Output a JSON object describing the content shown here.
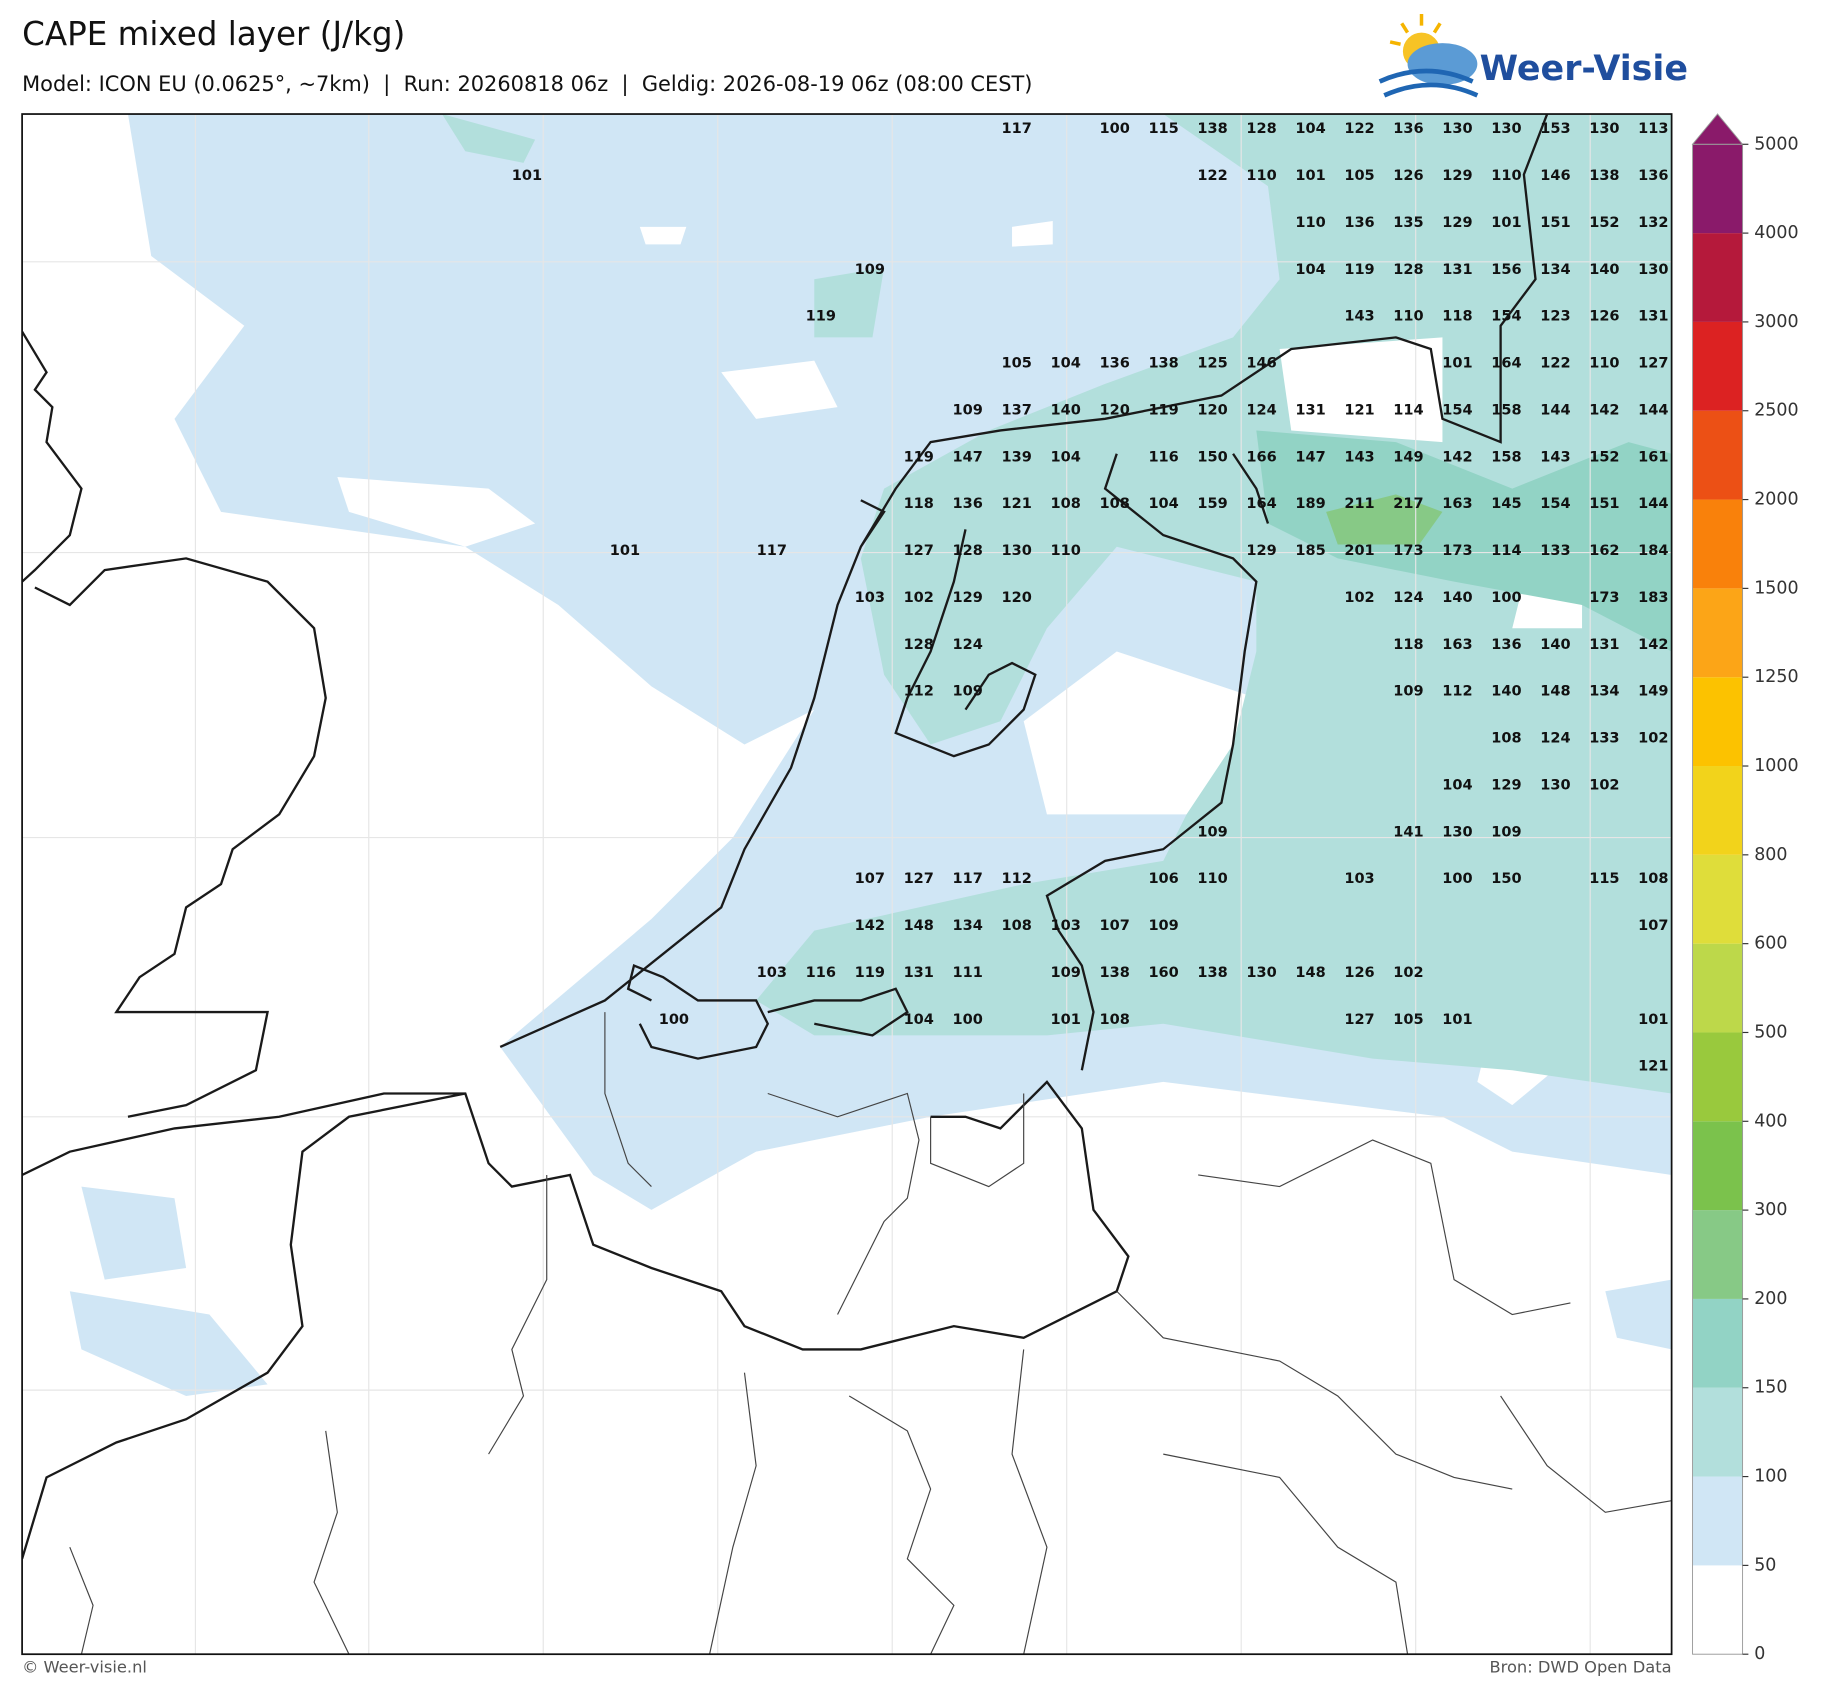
{
  "header": {
    "title": "CAPE mixed layer (J/kg)",
    "subtitle": "Model: ICON EU (0.0625°, ~7km)  |  Run: 20260818 06z  |  Geldig: 2026-08-19 06z (08:00 CEST)"
  },
  "logo": {
    "text": "Weer-Visie"
  },
  "map": {
    "values": [
      [
        null,
        null,
        null,
        null,
        null,
        null,
        null,
        null,
        null,
        null,
        117,
        null,
        100,
        115,
        138,
        128,
        104,
        122,
        136,
        130,
        130,
        153,
        130,
        113
      ],
      [
        101,
        null,
        null,
        null,
        null,
        null,
        null,
        null,
        null,
        null,
        null,
        null,
        null,
        null,
        122,
        110,
        101,
        105,
        126,
        129,
        110,
        146,
        138,
        136
      ],
      [
        null,
        null,
        null,
        null,
        null,
        null,
        null,
        null,
        null,
        null,
        null,
        null,
        null,
        null,
        null,
        null,
        110,
        136,
        135,
        129,
        101,
        151,
        152,
        132
      ],
      [
        null,
        null,
        null,
        null,
        null,
        null,
        null,
        109,
        null,
        null,
        null,
        null,
        null,
        null,
        null,
        null,
        104,
        119,
        128,
        131,
        156,
        134,
        140,
        130
      ],
      [
        null,
        null,
        null,
        null,
        null,
        null,
        119,
        null,
        null,
        null,
        null,
        null,
        null,
        null,
        null,
        null,
        null,
        143,
        110,
        118,
        154,
        123,
        126,
        131
      ],
      [
        null,
        null,
        null,
        null,
        null,
        null,
        null,
        null,
        null,
        null,
        105,
        104,
        136,
        138,
        125,
        146,
        null,
        null,
        null,
        101,
        164,
        122,
        110,
        127
      ],
      [
        null,
        null,
        null,
        null,
        null,
        null,
        null,
        null,
        null,
        109,
        137,
        140,
        120,
        119,
        120,
        124,
        131,
        121,
        114,
        154,
        158,
        144,
        142,
        144
      ],
      [
        null,
        null,
        null,
        null,
        null,
        null,
        null,
        null,
        119,
        147,
        139,
        104,
        null,
        116,
        150,
        166,
        147,
        143,
        149,
        142,
        158,
        143,
        152,
        161
      ],
      [
        null,
        null,
        null,
        null,
        null,
        null,
        null,
        null,
        118,
        136,
        121,
        108,
        108,
        104,
        159,
        164,
        189,
        211,
        217,
        163,
        145,
        154,
        151,
        144
      ],
      [
        null,
        null,
        101,
        null,
        null,
        117,
        null,
        null,
        127,
        128,
        130,
        110,
        null,
        null,
        null,
        129,
        185,
        201,
        173,
        173,
        114,
        133,
        162,
        184
      ],
      [
        null,
        null,
        null,
        null,
        null,
        null,
        null,
        103,
        102,
        129,
        120,
        null,
        null,
        null,
        null,
        null,
        null,
        102,
        124,
        140,
        100,
        null,
        173,
        183
      ],
      [
        null,
        null,
        null,
        null,
        null,
        null,
        null,
        null,
        128,
        124,
        null,
        null,
        null,
        null,
        null,
        null,
        null,
        null,
        118,
        163,
        136,
        140,
        131,
        142
      ],
      [
        null,
        null,
        null,
        null,
        null,
        null,
        null,
        null,
        112,
        109,
        null,
        null,
        null,
        null,
        null,
        null,
        null,
        null,
        109,
        112,
        140,
        148,
        134,
        149
      ],
      [
        null,
        null,
        null,
        null,
        null,
        null,
        null,
        null,
        null,
        null,
        null,
        null,
        null,
        null,
        null,
        null,
        null,
        null,
        null,
        null,
        108,
        124,
        133,
        102
      ],
      [
        null,
        null,
        null,
        null,
        null,
        null,
        null,
        null,
        null,
        null,
        null,
        null,
        null,
        null,
        null,
        null,
        null,
        null,
        null,
        104,
        129,
        130,
        102,
        null
      ],
      [
        null,
        null,
        null,
        null,
        null,
        null,
        null,
        null,
        null,
        null,
        null,
        null,
        null,
        null,
        109,
        null,
        null,
        null,
        141,
        130,
        109,
        null,
        null,
        null
      ],
      [
        null,
        null,
        null,
        null,
        null,
        null,
        null,
        107,
        127,
        117,
        112,
        null,
        null,
        106,
        110,
        null,
        null,
        103,
        null,
        100,
        150,
        null,
        115,
        108
      ],
      [
        null,
        null,
        null,
        null,
        null,
        null,
        null,
        142,
        148,
        134,
        108,
        103,
        107,
        109,
        null,
        null,
        null,
        null,
        null,
        null,
        null,
        null,
        null,
        107
      ],
      [
        null,
        null,
        null,
        null,
        null,
        103,
        116,
        119,
        131,
        111,
        null,
        109,
        138,
        160,
        138,
        130,
        148,
        126,
        102,
        null,
        null,
        null,
        null,
        null
      ],
      [
        null,
        null,
        null,
        100,
        null,
        null,
        null,
        null,
        104,
        100,
        null,
        101,
        108,
        null,
        null,
        null,
        null,
        127,
        105,
        101,
        null,
        null,
        null,
        101
      ],
      [
        null,
        null,
        null,
        null,
        null,
        null,
        null,
        null,
        null,
        null,
        null,
        null,
        null,
        null,
        null,
        null,
        null,
        null,
        null,
        null,
        null,
        null,
        null,
        121
      ]
    ]
  },
  "colorbar": {
    "levels": [
      0,
      50,
      100,
      150,
      200,
      300,
      400,
      500,
      600,
      800,
      1000,
      1250,
      1500,
      2000,
      2500,
      3000,
      4000,
      5000
    ],
    "colors": [
      "#ffffff",
      "#d0e6f5",
      "#b2dfdc",
      "#92d3c5",
      "#87c986",
      "#7bc24c",
      "#99c93d",
      "#bdd84a",
      "#dfdd3a",
      "#f2d31b",
      "#fcc200",
      "#fca517",
      "#f9810b",
      "#ec5015",
      "#dc2222",
      "#b5193b",
      "#8a1a6a"
    ]
  },
  "footer": {
    "left": "© Weer-visie.nl",
    "right": "Bron: DWD Open Data"
  }
}
